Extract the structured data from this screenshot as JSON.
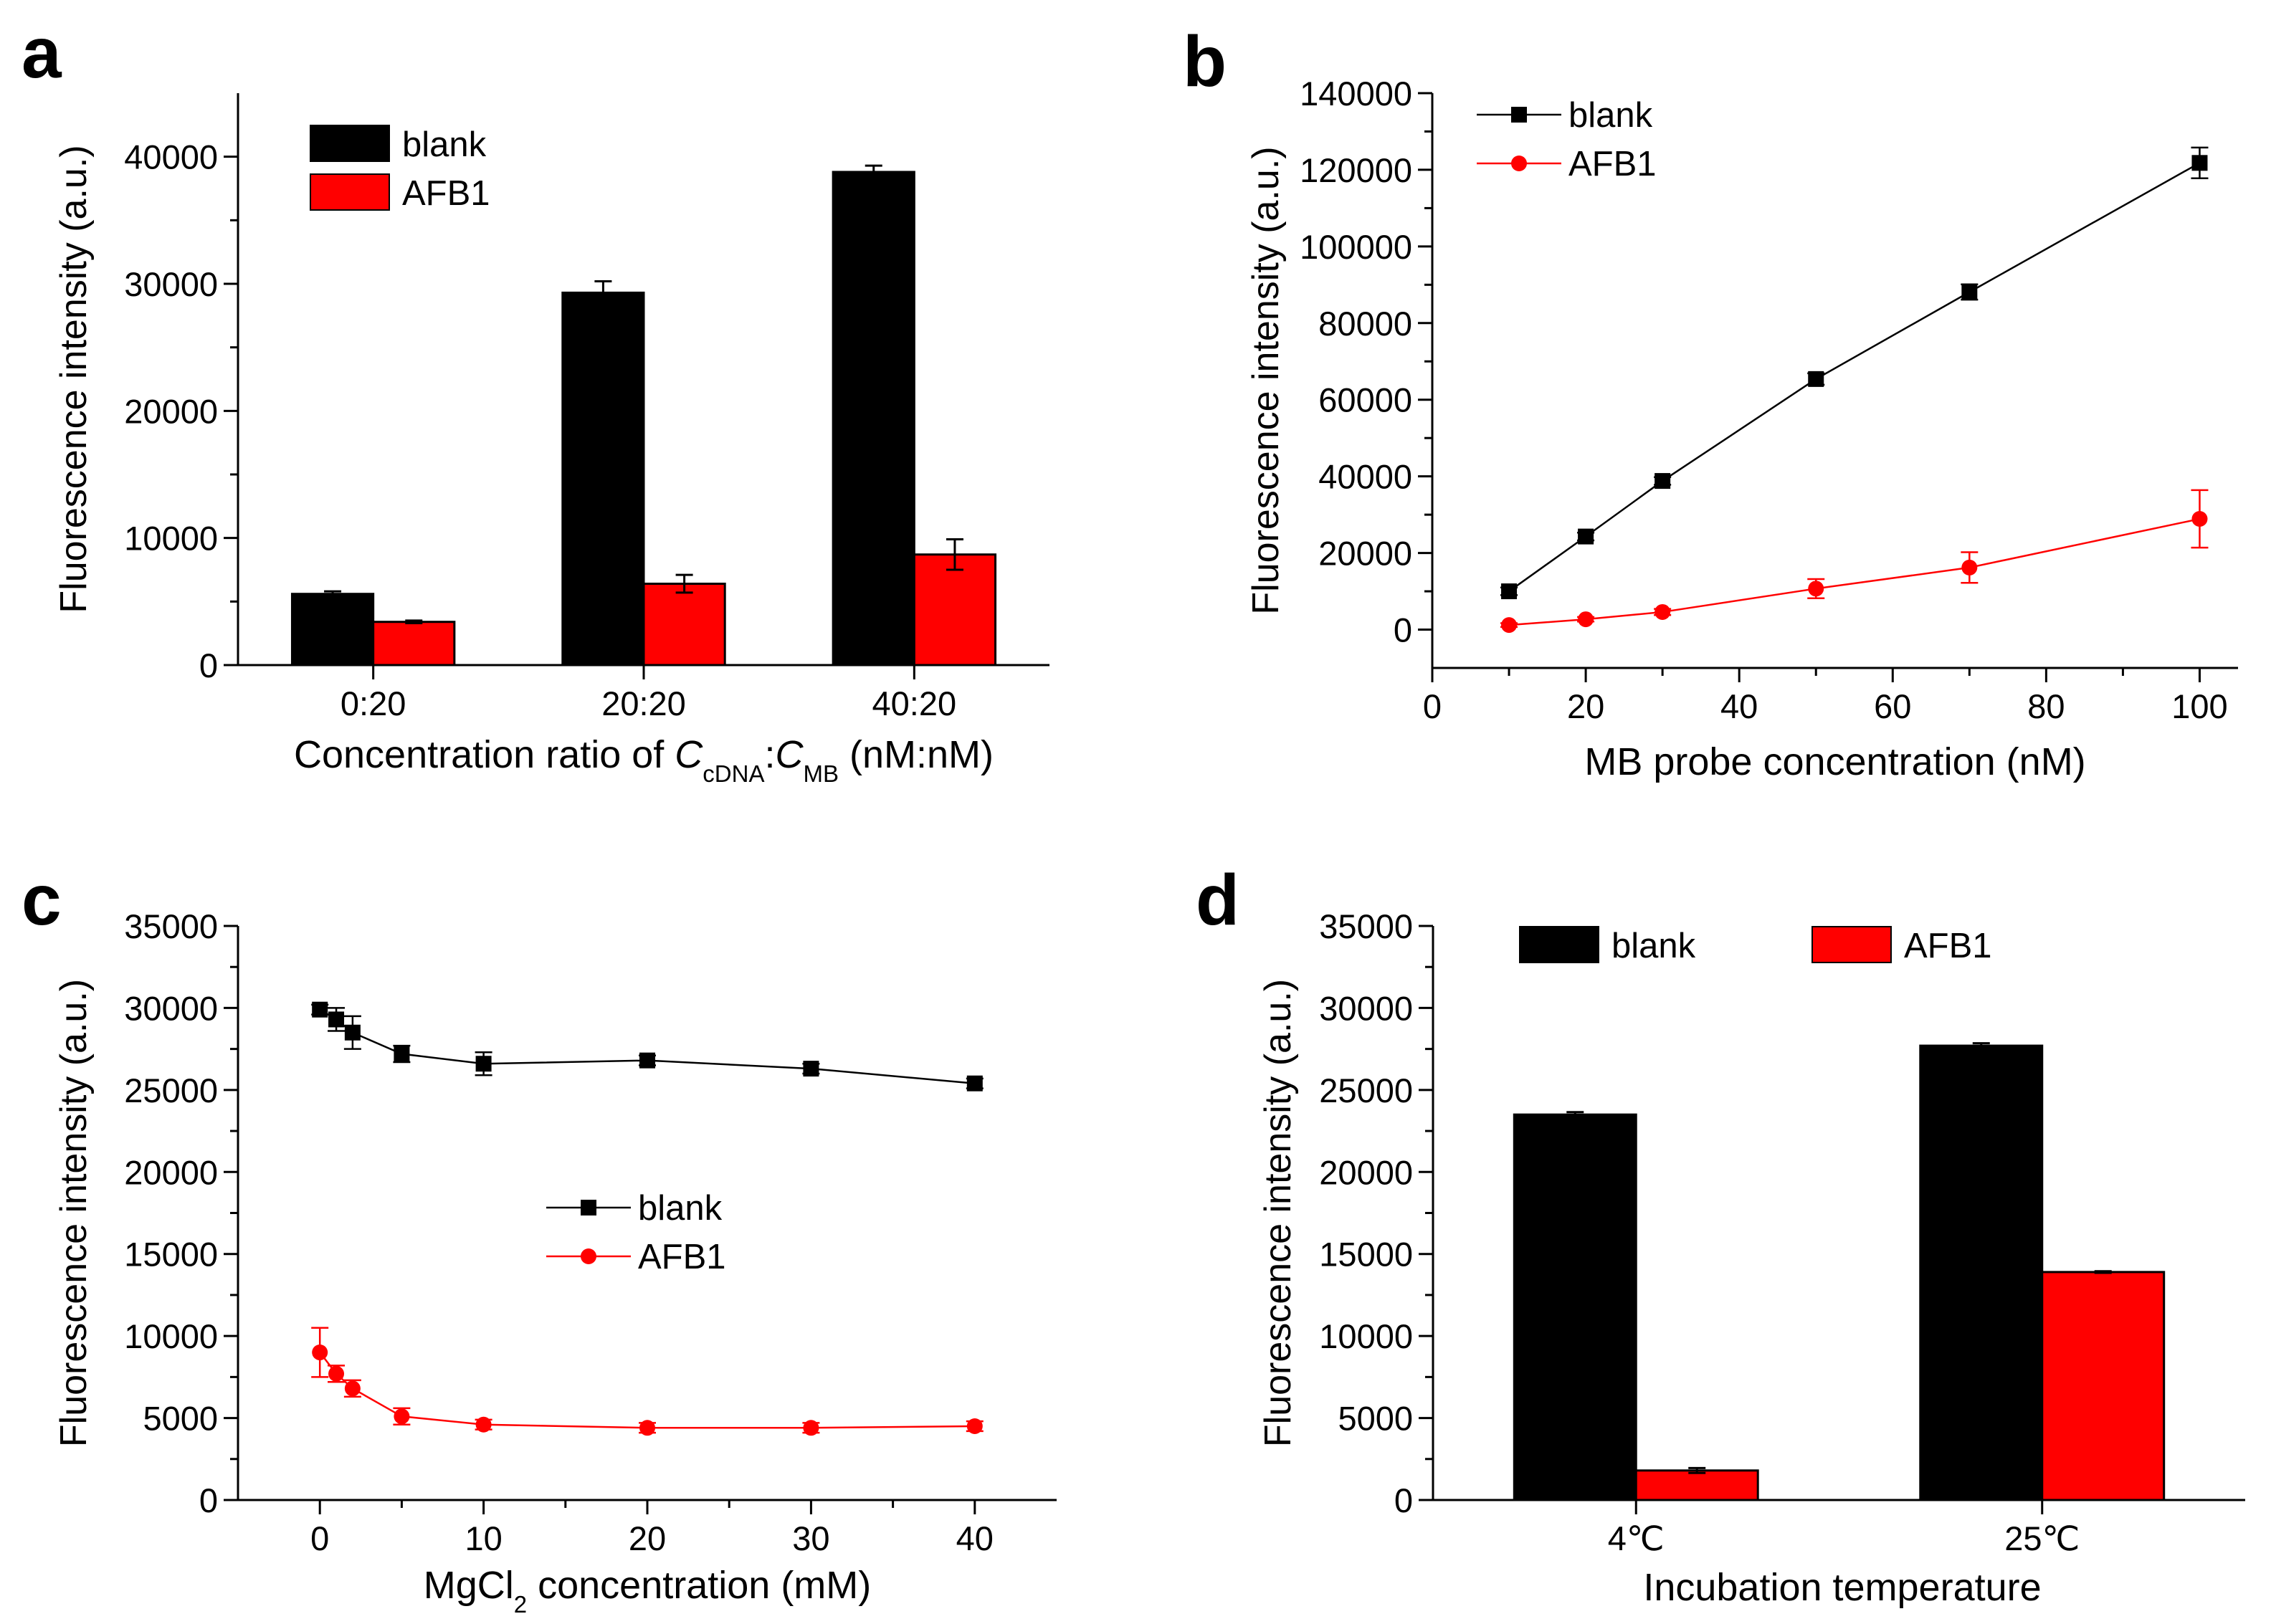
{
  "panel_labels": {
    "a": "a",
    "b": "b",
    "c": "c",
    "d": "d"
  },
  "colors": {
    "blank": "#000000",
    "afb1": "#ff0000"
  },
  "chart_data": [
    {
      "id": "a",
      "type": "bar",
      "categories": [
        "0:20",
        "20:20",
        "40:20"
      ],
      "series": [
        {
          "name": "blank",
          "values": [
            5600,
            29300,
            38800
          ],
          "errors": [
            200,
            900,
            500
          ]
        },
        {
          "name": "AFB1",
          "values": [
            3400,
            6400,
            8700
          ],
          "errors": [
            100,
            700,
            1200
          ]
        }
      ],
      "ylabel": "Fluorescence intensity (a.u.)",
      "xlabel_parts": {
        "pre": "Concentration ratio of ",
        "c1": "C",
        "sub1": "cDNA",
        "colon": ":",
        "c2": "C",
        "sub2": "MB",
        "post": " (nM:nM)"
      },
      "ylim": [
        0,
        45000
      ],
      "yticks": [
        0,
        10000,
        20000,
        30000,
        40000
      ],
      "legend": "top-left"
    },
    {
      "id": "b",
      "type": "line",
      "series": [
        {
          "name": "blank",
          "x": [
            10,
            20,
            30,
            50,
            70,
            100
          ],
          "y": [
            10000,
            24300,
            38800,
            65400,
            88100,
            121800
          ],
          "errors": [
            1000,
            1000,
            1000,
            1500,
            2000,
            4000
          ]
        },
        {
          "name": "AFB1",
          "x": [
            10,
            20,
            30,
            50,
            70,
            100
          ],
          "y": [
            1200,
            2700,
            4600,
            10700,
            16200,
            28900
          ],
          "errors": [
            500,
            600,
            800,
            2500,
            4000,
            7500
          ]
        }
      ],
      "xlabel": "MB probe concentration (nM)",
      "ylabel": "Fluorescence intensity (a.u.)",
      "xlim": [
        0,
        105
      ],
      "ylim": [
        -10000,
        140000
      ],
      "xticks": [
        0,
        20,
        40,
        60,
        80,
        100
      ],
      "yticks": [
        0,
        20000,
        40000,
        60000,
        80000,
        100000,
        120000,
        140000
      ],
      "legend": "top-left"
    },
    {
      "id": "c",
      "type": "line",
      "series": [
        {
          "name": "blank",
          "x": [
            0,
            1,
            2,
            5,
            10,
            20,
            30,
            40
          ],
          "y": [
            29900,
            29300,
            28500,
            27200,
            26600,
            26800,
            26300,
            25400
          ],
          "errors": [
            300,
            700,
            1000,
            500,
            700,
            300,
            300,
            300
          ]
        },
        {
          "name": "AFB1",
          "x": [
            0,
            1,
            2,
            5,
            10,
            20,
            30,
            40
          ],
          "y": [
            9000,
            7700,
            6800,
            5100,
            4600,
            4400,
            4400,
            4500
          ],
          "errors": [
            1500,
            500,
            500,
            500,
            300,
            300,
            300,
            300
          ]
        }
      ],
      "xlabel_parts": {
        "pre": "MgCl",
        "sub": "2",
        "post": " concentration (mM)"
      },
      "ylabel": "Fluorescence intensity (a.u.)",
      "xlim": [
        -5,
        45
      ],
      "ylim": [
        0,
        35000
      ],
      "xticks": [
        0,
        10,
        20,
        30,
        40
      ],
      "yticks": [
        0,
        5000,
        10000,
        15000,
        20000,
        25000,
        30000,
        35000
      ],
      "legend": "center"
    },
    {
      "id": "d",
      "type": "bar",
      "categories": [
        "4℃",
        "25℃"
      ],
      "series": [
        {
          "name": "blank",
          "values": [
            23500,
            27700
          ],
          "errors": [
            150,
            150
          ]
        },
        {
          "name": "AFB1",
          "values": [
            1800,
            13900
          ],
          "errors": [
            150,
            50
          ]
        }
      ],
      "xlabel": "Incubation temperature",
      "ylabel": "Fluorescence intensity (a.u.)",
      "ylim": [
        0,
        35000
      ],
      "yticks": [
        0,
        5000,
        10000,
        15000,
        20000,
        25000,
        30000,
        35000
      ],
      "legend": "top"
    }
  ]
}
